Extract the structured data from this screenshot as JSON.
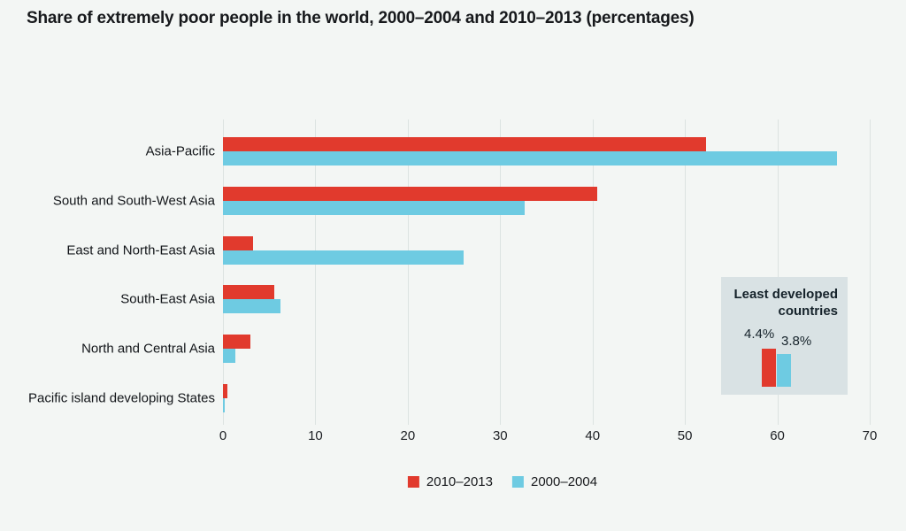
{
  "title": "Share of extremely poor people in the world, 2000–2004 and 2010–2013 (percentages)",
  "colors": {
    "series_2010_2013": "#e13a2d",
    "series_2000_2004": "#6ecbe2",
    "page_background": "#f3f6f4",
    "inset_background": "#d9e2e4",
    "gridline": "#dce3e1",
    "text": "#17191c"
  },
  "chart_data": {
    "type": "bar",
    "orientation": "horizontal",
    "title": "Share of extremely poor people in the world, 2000–2004 and 2010–2013 (percentages)",
    "xlabel": "",
    "ylabel": "",
    "xlim": [
      0,
      70
    ],
    "xticks": [
      0,
      10,
      20,
      30,
      40,
      50,
      60,
      70
    ],
    "grid": true,
    "legend_position": "bottom",
    "categories": [
      "Asia-Pacific",
      "South and South-West Asia",
      "East and North-East Asia",
      "South-East Asia",
      "North and Central Asia",
      "Pacific island developing States"
    ],
    "series": [
      {
        "name": "2010–2013",
        "color": "#e13a2d",
        "values": [
          52.3,
          40.5,
          3.3,
          5.6,
          3.0,
          0.5
        ]
      },
      {
        "name": "2000–2004",
        "color": "#6ecbe2",
        "values": [
          66.5,
          32.7,
          26.0,
          6.2,
          1.3,
          0.2
        ]
      }
    ]
  },
  "inset": {
    "title": "Least developed countries",
    "bars": [
      {
        "series": "2010–2013",
        "label": "4.4%",
        "value": 4.4,
        "color": "#e13a2d"
      },
      {
        "series": "2000–2004",
        "label": "3.8%",
        "value": 3.8,
        "color": "#6ecbe2"
      }
    ]
  },
  "legend": {
    "items": [
      {
        "label": "2010–2013",
        "color": "#e13a2d"
      },
      {
        "label": "2000–2004",
        "color": "#6ecbe2"
      }
    ]
  }
}
